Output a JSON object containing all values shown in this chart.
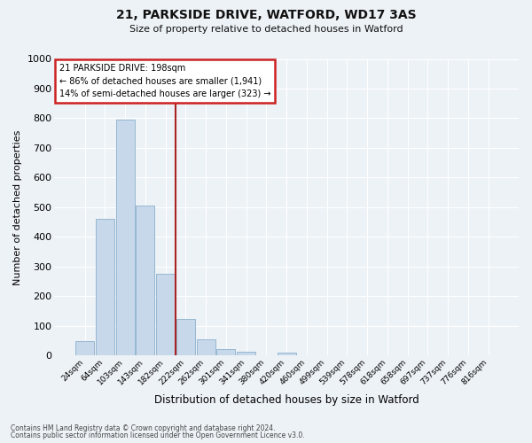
{
  "title1": "21, PARKSIDE DRIVE, WATFORD, WD17 3AS",
  "title2": "Size of property relative to detached houses in Watford",
  "xlabel": "Distribution of detached houses by size in Watford",
  "ylabel": "Number of detached properties",
  "bar_labels": [
    "24sqm",
    "64sqm",
    "103sqm",
    "143sqm",
    "182sqm",
    "222sqm",
    "262sqm",
    "301sqm",
    "341sqm",
    "380sqm",
    "420sqm",
    "460sqm",
    "499sqm",
    "539sqm",
    "578sqm",
    "618sqm",
    "658sqm",
    "697sqm",
    "737sqm",
    "776sqm",
    "816sqm"
  ],
  "bar_values": [
    50,
    460,
    795,
    505,
    275,
    122,
    54,
    22,
    13,
    0,
    10,
    0,
    0,
    0,
    0,
    0,
    0,
    0,
    0,
    0,
    0
  ],
  "bar_color": "#c8d8eb",
  "bar_edge_color": "#8ab0cc",
  "vline_x": 4.5,
  "vline_color": "#aa2222",
  "ylim": [
    0,
    1000
  ],
  "yticks": [
    0,
    100,
    200,
    300,
    400,
    500,
    600,
    700,
    800,
    900,
    1000
  ],
  "annotation_title": "21 PARKSIDE DRIVE: 198sqm",
  "annotation_line1": "← 86% of detached houses are smaller (1,941)",
  "annotation_line2": "14% of semi-detached houses are larger (323) →",
  "annotation_box_color": "#ffffff",
  "annotation_box_edge": "#cc2222",
  "footer1": "Contains HM Land Registry data © Crown copyright and database right 2024.",
  "footer2": "Contains public sector information licensed under the Open Government Licence v3.0.",
  "bg_color": "#edf2f7",
  "grid_color": "#ffffff"
}
